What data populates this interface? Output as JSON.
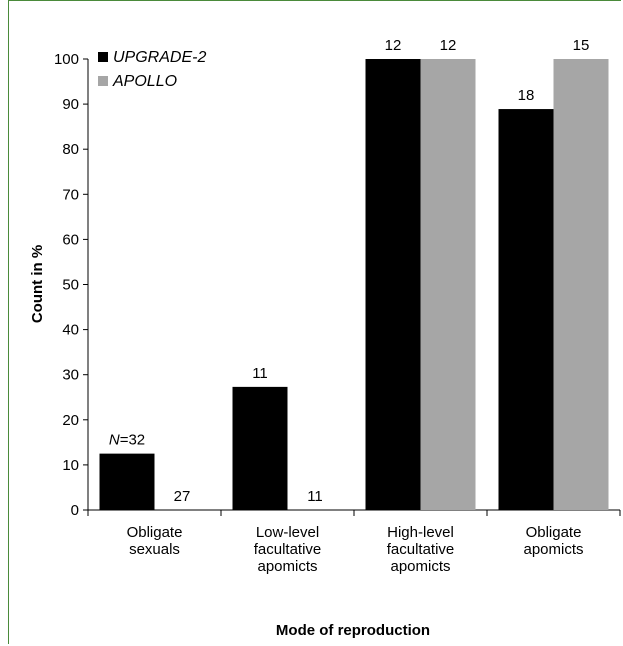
{
  "chart_data": {
    "type": "bar",
    "categories": [
      [
        "Obligate",
        "sexuals"
      ],
      [
        "Low-level",
        "facultative",
        "apomicts"
      ],
      [
        "High-level",
        "facultative",
        "apomicts"
      ],
      [
        "Obligate",
        "apomicts"
      ]
    ],
    "series": [
      {
        "name": "UPGRADE-2",
        "color": "#000000",
        "values": [
          12.5,
          27.3,
          100,
          88.9
        ],
        "labels": [
          "N=32",
          "11",
          "12",
          "18"
        ]
      },
      {
        "name": "APOLLO",
        "color": "#a6a6a6",
        "values": [
          0,
          0,
          100,
          100
        ],
        "labels": [
          "27",
          "11",
          "12",
          "15"
        ]
      }
    ],
    "title": "",
    "xlabel": "Mode of reproduction",
    "ylabel": "Count in %",
    "ylim": [
      0,
      100
    ],
    "yticks": [
      0,
      10,
      20,
      30,
      40,
      50,
      60,
      70,
      80,
      90,
      100
    ],
    "legend_position": "top-left",
    "grid": false
  }
}
